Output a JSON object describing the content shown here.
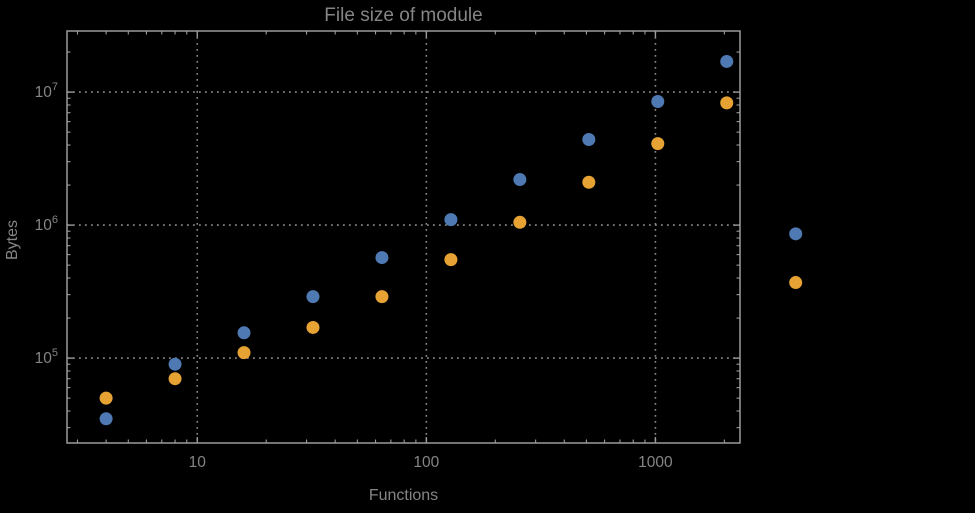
{
  "page": {
    "background": "#000000"
  },
  "chart_data": {
    "type": "scatter",
    "title": "File size of module",
    "xlabel": "Functions",
    "ylabel": "Bytes",
    "x_scale": "log",
    "y_scale": "log",
    "x_range": [
      2.7,
      2340
    ],
    "y_range": [
      23000,
      28800000
    ],
    "grid": "dotted lines at major ticks",
    "legend": "none",
    "clipping": false,
    "x": [
      4,
      8,
      16,
      32,
      64,
      128,
      256,
      512,
      1024,
      2048,
      4096
    ],
    "series": [
      {
        "name": "series-1-blue",
        "color": "#4E79B3",
        "values": [
          35000,
          90000,
          155000,
          290000,
          570000,
          1100000,
          2200000,
          4400000,
          8500000,
          17000000,
          860000
        ]
      },
      {
        "name": "series-2-orange",
        "color": "#E6A233",
        "values": [
          50000,
          70000,
          110000,
          170000,
          290000,
          550000,
          1050000,
          2100000,
          4100000,
          8300000,
          370000
        ]
      }
    ],
    "x_ticks": [
      {
        "value": 10,
        "label": "10"
      },
      {
        "value": 100,
        "label": "100"
      },
      {
        "value": 1000,
        "label": "1000"
      }
    ],
    "y_ticks": [
      {
        "value": 100000,
        "base": "10",
        "exp": "5"
      },
      {
        "value": 1000000,
        "base": "10",
        "exp": "6"
      },
      {
        "value": 10000000,
        "base": "10",
        "exp": "7"
      }
    ],
    "colors": {
      "frame": "#9B9B9B",
      "grid": "#878787",
      "text": "#858585",
      "background": "#000000"
    }
  }
}
